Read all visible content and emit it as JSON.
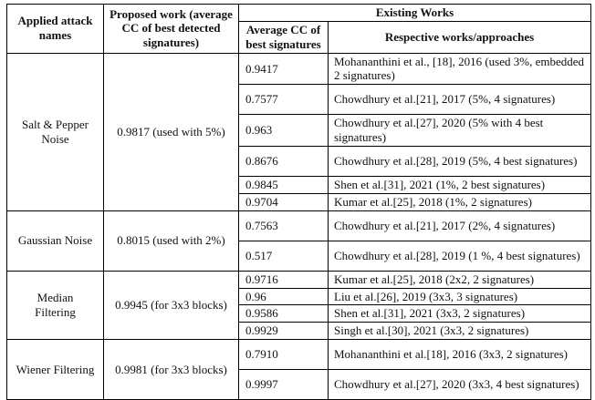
{
  "table": {
    "headers": {
      "applied_attack": "Applied attack names",
      "proposed_work": "Proposed work (average CC of best detected signatures)",
      "existing_works": "Existing Works",
      "avg_cc": "Average CC of best signatures",
      "respective_works": "Respective works/approaches"
    },
    "groups": [
      {
        "attack": "Salt & Pepper\nNoise",
        "proposed": "0.9817 (used with 5%)",
        "rows": [
          {
            "cc": "0.9417",
            "work": "Mohananthini et al., [18], 2016 (used 3%, embedded 2 signatures)"
          },
          {
            "cc": "0.7577",
            "work": "Chowdhury et al.[21], 2017 (5%, 4 signatures)"
          },
          {
            "cc": "0.963",
            "work": "Chowdhury et al.[27], 2020 (5% with 4 best signatures)"
          },
          {
            "cc": "0.8676",
            "work": "Chowdhury et al.[28], 2019 (5%, 4 best signatures)"
          },
          {
            "cc": "0.9845",
            "work": "Shen et al.[31], 2021 (1%, 2 best signatures)"
          },
          {
            "cc": "0.9704",
            "work": "Kumar et al.[25], 2018 (1%, 2 signatures)"
          }
        ]
      },
      {
        "attack": "Gaussian Noise",
        "proposed": "0.8015 (used with 2%)",
        "rows": [
          {
            "cc": "0.7563",
            "work": "Chowdhury et al.[21], 2017 (2%, 4 signatures)"
          },
          {
            "cc": "0.517",
            "work": "Chowdhury et al.[28], 2019 (1 %, 4 best signatures)"
          }
        ]
      },
      {
        "attack": "Median\nFiltering",
        "proposed": "0.9945 (for 3x3 blocks)",
        "rows": [
          {
            "cc": "0.9716",
            "work": "Kumar et al.[25], 2018 (2x2, 2 signatures)"
          },
          {
            "cc": "0.96",
            "work": "Liu et al.[26], 2019 (3x3, 3 signatures)"
          },
          {
            "cc": "0.9586",
            "work": "Shen et al.[31], 2021 (3x3, 2 signatures)"
          },
          {
            "cc": "0.9929",
            "work": "Singh et al.[30], 2021 (3x3, 2 signatures)"
          }
        ]
      },
      {
        "attack": "Wiener Filtering",
        "proposed": "0.9981 (for 3x3 blocks)",
        "rows": [
          {
            "cc": "0.7910",
            "work": "Mohananthini et al.[18], 2016 (3x3, 2 signatures)"
          },
          {
            "cc": "0.9997",
            "work": "Chowdhury et al.[27], 2020 (3x3, 4 best signatures)"
          }
        ]
      }
    ]
  }
}
